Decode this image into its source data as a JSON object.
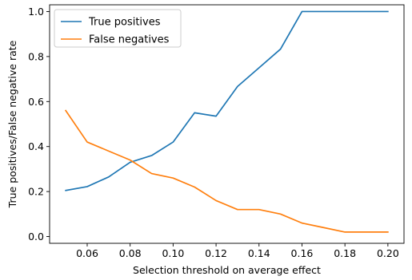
{
  "chart_data": {
    "type": "line",
    "title": "",
    "xlabel": "Selection threshold on average effect",
    "ylabel": "True positives/False negative rate",
    "xlim": [
      0.0425,
      0.2075
    ],
    "ylim": [
      -0.03,
      1.03
    ],
    "x_ticks": [
      0.06,
      0.08,
      0.1,
      0.12,
      0.14,
      0.16,
      0.18,
      0.2
    ],
    "x_tick_labels": [
      "0.06",
      "0.08",
      "0.10",
      "0.12",
      "0.14",
      "0.16",
      "0.18",
      "0.20"
    ],
    "y_ticks": [
      0.0,
      0.2,
      0.4,
      0.6,
      0.8,
      1.0
    ],
    "y_tick_labels": [
      "0.0",
      "0.2",
      "0.4",
      "0.6",
      "0.8",
      "1.0"
    ],
    "grid": false,
    "legend_position": "upper-left",
    "x": [
      0.05,
      0.06,
      0.07,
      0.08,
      0.09,
      0.1,
      0.11,
      0.12,
      0.13,
      0.14,
      0.15,
      0.16,
      0.17,
      0.18,
      0.19,
      0.2
    ],
    "series": [
      {
        "name": "True positives",
        "color": "#1f77b4",
        "values": [
          0.205,
          0.222,
          0.265,
          0.33,
          0.36,
          0.42,
          0.55,
          0.535,
          0.667,
          0.75,
          0.833,
          1.0,
          1.0,
          1.0,
          1.0,
          1.0
        ]
      },
      {
        "name": "False negatives",
        "color": "#ff7f0e",
        "values": [
          0.56,
          0.42,
          0.38,
          0.34,
          0.28,
          0.26,
          0.22,
          0.16,
          0.12,
          0.12,
          0.1,
          0.06,
          0.04,
          0.02,
          0.02,
          0.02
        ]
      }
    ]
  }
}
